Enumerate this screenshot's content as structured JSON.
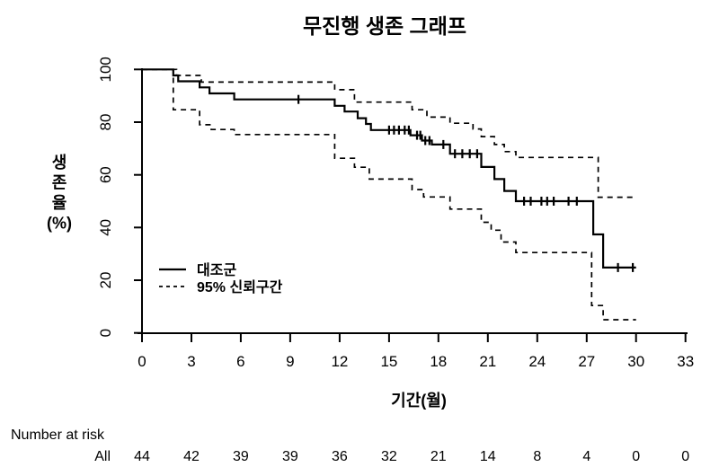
{
  "chart_data": {
    "type": "line",
    "subtype": "kaplan-meier-step",
    "title": "무진행 생존 그래프",
    "xlabel": "기간(월)",
    "ylabel": "생존율(%)",
    "ylabel_lines": [
      "생",
      "존",
      "율",
      "(%)"
    ],
    "xlim": [
      0,
      33
    ],
    "ylim": [
      0,
      100
    ],
    "x_ticks": [
      0,
      3,
      6,
      9,
      12,
      15,
      18,
      21,
      24,
      27,
      30,
      33
    ],
    "y_ticks": [
      0,
      20,
      40,
      60,
      80,
      100
    ],
    "grid": false,
    "legend_position": "inside-left-lower",
    "legend": [
      {
        "label": "대조군",
        "style": "solid"
      },
      {
        "label": "95% 신뢰구간",
        "style": "dashed"
      }
    ],
    "series": [
      {
        "name": "대조군",
        "style": "solid",
        "points": [
          [
            0,
            100
          ],
          [
            1.9,
            97.7
          ],
          [
            2.2,
            95.5
          ],
          [
            3.5,
            93.2
          ],
          [
            4.1,
            90.9
          ],
          [
            5.6,
            88.6
          ],
          [
            11.7,
            86.2
          ],
          [
            12.3,
            84.0
          ],
          [
            13.1,
            81.5
          ],
          [
            13.6,
            79.3
          ],
          [
            13.9,
            77.0
          ],
          [
            16.3,
            75.0
          ],
          [
            17.0,
            73.0
          ],
          [
            17.6,
            71.5
          ],
          [
            18.7,
            68.0
          ],
          [
            20.6,
            63.0
          ],
          [
            21.4,
            58.4
          ],
          [
            22.0,
            53.9
          ],
          [
            22.7,
            50.0
          ],
          [
            27.4,
            37.4
          ],
          [
            28.0,
            24.8
          ],
          [
            30.0,
            24.8
          ]
        ]
      },
      {
        "name": "95% 신뢰구간 상한",
        "style": "dashed",
        "points": [
          [
            0,
            100
          ],
          [
            2.1,
            97.7
          ],
          [
            3.6,
            95.2
          ],
          [
            11.7,
            92.3
          ],
          [
            12.9,
            87.6
          ],
          [
            16.4,
            84.7
          ],
          [
            17.3,
            81.9
          ],
          [
            18.7,
            79.6
          ],
          [
            20.1,
            77.4
          ],
          [
            20.6,
            74.5
          ],
          [
            21.4,
            71.5
          ],
          [
            22.0,
            68.8
          ],
          [
            22.7,
            66.6
          ],
          [
            27.7,
            51.5
          ],
          [
            30.0,
            51.5
          ]
        ]
      },
      {
        "name": "95% 신뢰구간 하한",
        "style": "dashed",
        "points": [
          [
            0,
            100
          ],
          [
            1.9,
            84.7
          ],
          [
            3.5,
            79.0
          ],
          [
            4.2,
            77.2
          ],
          [
            5.6,
            75.3
          ],
          [
            11.7,
            66.3
          ],
          [
            12.9,
            62.9
          ],
          [
            13.8,
            58.4
          ],
          [
            16.4,
            54.4
          ],
          [
            17.1,
            51.6
          ],
          [
            18.7,
            47.0
          ],
          [
            20.6,
            42.0
          ],
          [
            21.2,
            39.0
          ],
          [
            21.8,
            34.5
          ],
          [
            22.7,
            30.5
          ],
          [
            27.3,
            10.4
          ],
          [
            28.0,
            5.0
          ],
          [
            30.0,
            5.0
          ]
        ]
      }
    ],
    "censor_marks": [
      [
        9.5,
        88.6
      ],
      [
        15.0,
        77.0
      ],
      [
        15.3,
        77.0
      ],
      [
        15.6,
        77.0
      ],
      [
        15.95,
        77.0
      ],
      [
        16.2,
        77.0
      ],
      [
        16.7,
        75.0
      ],
      [
        16.9,
        75.0
      ],
      [
        17.2,
        73.0
      ],
      [
        17.45,
        73.0
      ],
      [
        18.3,
        71.5
      ],
      [
        19.0,
        68.0
      ],
      [
        19.45,
        68.0
      ],
      [
        19.9,
        68.0
      ],
      [
        20.35,
        68.0
      ],
      [
        23.2,
        50.0
      ],
      [
        23.6,
        50.0
      ],
      [
        24.25,
        50.0
      ],
      [
        24.6,
        50.0
      ],
      [
        25.0,
        50.0
      ],
      [
        25.9,
        50.0
      ],
      [
        26.4,
        50.0
      ],
      [
        28.9,
        24.8
      ],
      [
        29.8,
        24.8
      ]
    ],
    "number_at_risk": {
      "label": "Number at risk",
      "row_label": "All",
      "months": [
        0,
        3,
        6,
        9,
        12,
        15,
        18,
        21,
        24,
        27,
        30,
        33
      ],
      "values": [
        44,
        42,
        39,
        39,
        36,
        32,
        21,
        14,
        8,
        4,
        0,
        0
      ]
    },
    "colors": {
      "line": "#000000",
      "background": "#ffffff"
    }
  }
}
